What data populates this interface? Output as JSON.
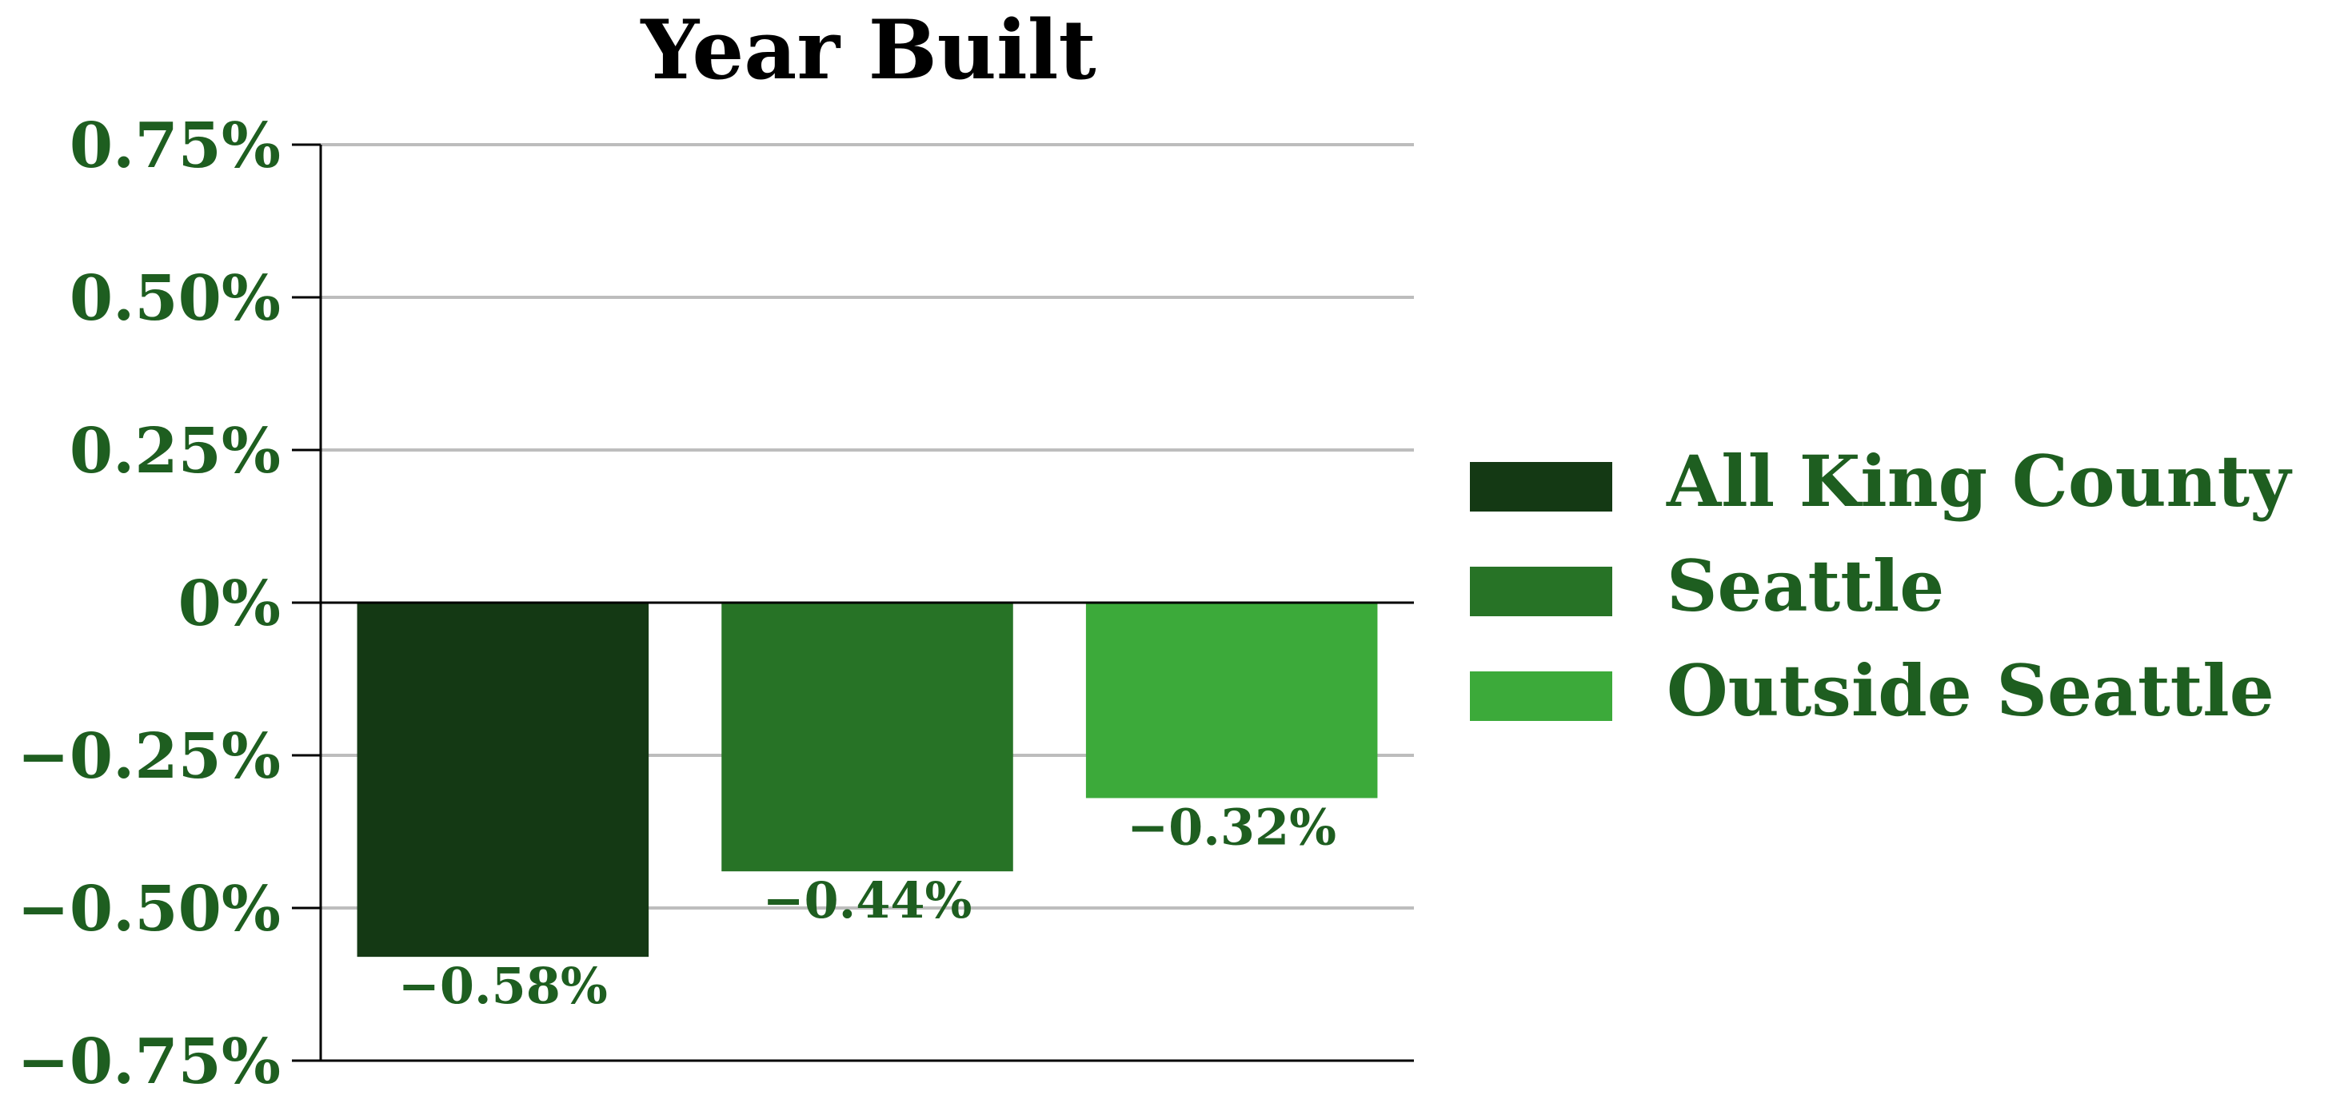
{
  "chart_data": {
    "type": "bar",
    "title": "Year Built",
    "xlabel": "",
    "ylabel": "",
    "categories": [
      "All King County",
      "Seattle",
      "Outside Seattle"
    ],
    "values": [
      -0.58,
      -0.44,
      -0.32
    ],
    "value_labels": [
      "−0.58%",
      "−0.44%",
      "−0.32%"
    ],
    "ylim": [
      -0.75,
      0.75
    ],
    "yticks": [
      0.75,
      0.5,
      0.25,
      0,
      -0.25,
      -0.5,
      -0.75
    ],
    "ytick_labels": [
      "0.75%",
      "0.50%",
      "0.25%",
      "0%",
      "−0.25%",
      "−0.50%",
      "−0.75%"
    ],
    "grid": "horizontal",
    "legend": {
      "placement": "right",
      "entries": [
        "All King County",
        "Seattle",
        "Outside Seattle"
      ]
    },
    "colors": {
      "text": "#1e5e20",
      "bars": [
        "#143914",
        "#277326",
        "#3caa3a"
      ],
      "grid": "#bdbdbd",
      "axis": "#000000"
    }
  }
}
